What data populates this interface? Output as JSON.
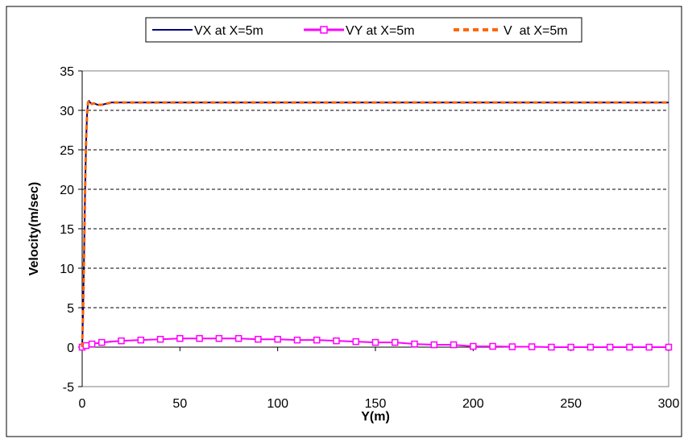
{
  "chart_data": {
    "type": "line",
    "title": "",
    "xlabel": "Y(m)",
    "ylabel": "Velocity(m/sec)",
    "xlim": [
      0,
      300
    ],
    "ylim": [
      -5,
      35
    ],
    "x_ticks": [
      0,
      50,
      100,
      150,
      200,
      250,
      300
    ],
    "y_ticks": [
      -5,
      0,
      5,
      10,
      15,
      20,
      25,
      30,
      35
    ],
    "grid": "horizontal dashed",
    "legend_position": "top",
    "series": [
      {
        "name": "VX at X=5m",
        "color": "#000080",
        "style": "solid",
        "marker": "none",
        "x": [
          0,
          0.5,
          1,
          1.5,
          2,
          2.5,
          3,
          3.5,
          4,
          5,
          6,
          8,
          10,
          15,
          20,
          30,
          50,
          100,
          150,
          200,
          250,
          300
        ],
        "y": [
          0,
          5,
          12,
          20,
          26,
          29.5,
          31,
          31.2,
          31,
          30.8,
          30.9,
          30.7,
          30.7,
          31,
          31,
          31,
          31,
          31,
          31,
          31,
          31,
          31
        ]
      },
      {
        "name": "VY at X=5m",
        "color": "#ff00ff",
        "style": "solid",
        "marker": "square",
        "x": [
          0,
          2,
          5,
          10,
          20,
          30,
          40,
          50,
          60,
          70,
          80,
          90,
          100,
          110,
          120,
          130,
          140,
          150,
          160,
          170,
          180,
          190,
          200,
          210,
          220,
          230,
          240,
          250,
          260,
          270,
          280,
          290,
          300
        ],
        "y": [
          0,
          0.2,
          0.4,
          0.6,
          0.8,
          0.9,
          1.0,
          1.1,
          1.1,
          1.1,
          1.1,
          1.0,
          1.0,
          0.9,
          0.9,
          0.8,
          0.7,
          0.6,
          0.6,
          0.4,
          0.3,
          0.3,
          0.1,
          0.1,
          0.05,
          0.05,
          0,
          0,
          0,
          0,
          0,
          0,
          0
        ]
      },
      {
        "name": "V  at X=5m",
        "color": "#ff6600",
        "style": "dashed",
        "marker": "none",
        "x": [
          0,
          0.5,
          1,
          1.5,
          2,
          2.5,
          3,
          3.5,
          4,
          5,
          6,
          8,
          10,
          15,
          20,
          30,
          50,
          100,
          150,
          200,
          250,
          300
        ],
        "y": [
          0,
          5,
          12,
          20,
          26,
          29.5,
          31,
          31.2,
          31,
          30.8,
          30.9,
          30.7,
          30.7,
          31,
          31,
          31,
          31,
          31,
          31,
          31,
          31,
          31
        ]
      }
    ]
  }
}
